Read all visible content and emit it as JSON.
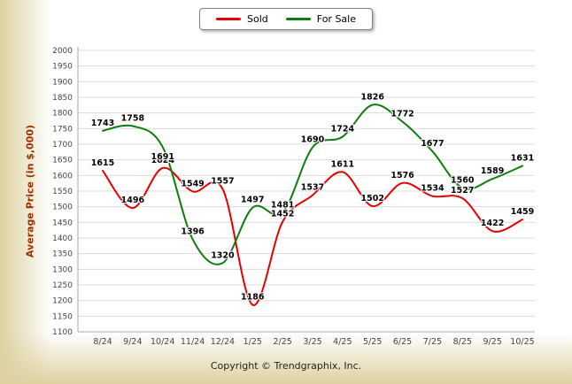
{
  "copyright": "Copyright © Trendgraphix, Inc.",
  "colors": {
    "sold": "#e60000",
    "for_sale": "#0e7d0e",
    "grid": "#dcdcdc",
    "axis": "#aaaaaa",
    "axis_text": "#444444",
    "y_title": "#993300"
  },
  "chart_data": {
    "type": "line",
    "title": "",
    "xlabel": "",
    "ylabel": "Average Price (in $,000)",
    "ylim": [
      1100,
      2000
    ],
    "ytick_step": 50,
    "grid": true,
    "legend_position": "top-center",
    "data_labels": true,
    "categories": [
      "8/24",
      "9/24",
      "10/24",
      "11/24",
      "12/24",
      "1/25",
      "2/25",
      "3/25",
      "4/25",
      "5/25",
      "6/25",
      "7/25",
      "8/25",
      "9/25",
      "10/25"
    ],
    "series": [
      {
        "name": "Sold",
        "color": "#e60000",
        "values": [
          1615,
          1496,
          1624,
          1549,
          1557,
          1186,
          1452,
          1537,
          1611,
          1502,
          1576,
          1534,
          1527,
          1422,
          1459
        ],
        "label_below_indices": []
      },
      {
        "name": "For Sale",
        "color": "#0e7d0e",
        "values": [
          1743,
          1758,
          1691,
          1396,
          1320,
          1497,
          1481,
          1690,
          1724,
          1826,
          1772,
          1677,
          1560,
          1589,
          1631
        ],
        "label_below_indices": [
          2
        ]
      }
    ]
  }
}
